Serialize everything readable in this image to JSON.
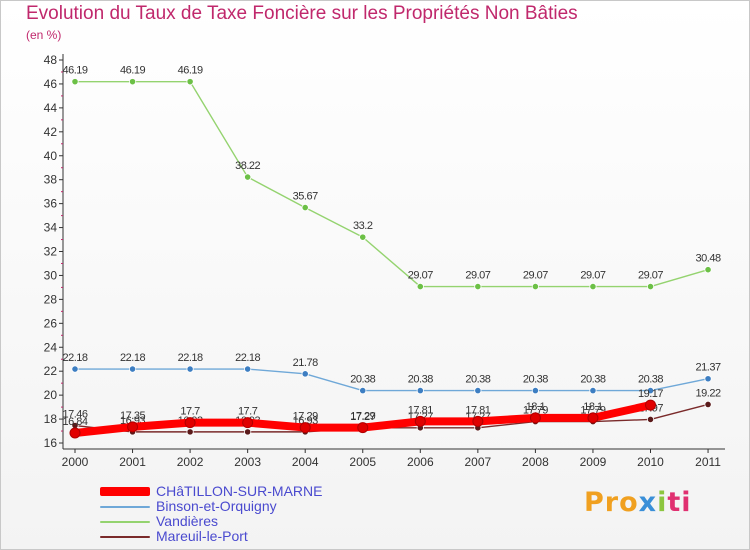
{
  "header": {
    "title": "Evolution du Taux de Taxe Foncière sur les Propriétés Non Bâties",
    "subtitle": "(en %)"
  },
  "chart_data": {
    "type": "line",
    "title": "Evolution du Taux de Taxe Foncière sur les Propriétés Non Bâties",
    "ylabel": "(en %)",
    "xlabel": "",
    "categories": [
      "2000",
      "2001",
      "2002",
      "2003",
      "2004",
      "2005",
      "2006",
      "2007",
      "2008",
      "2009",
      "2010",
      "2011"
    ],
    "ylim": [
      15.5,
      48
    ],
    "yticks": [
      16,
      18,
      20,
      22,
      24,
      26,
      28,
      30,
      32,
      34,
      36,
      38,
      40,
      42,
      44,
      46,
      48
    ],
    "grid": false,
    "legend": "bottom-left",
    "series": [
      {
        "name": "Vandières",
        "color": "#94d36f",
        "point_color": "#6cc046",
        "values": [
          46.19,
          46.19,
          46.19,
          38.22,
          35.67,
          33.2,
          29.07,
          29.07,
          29.07,
          29.07,
          29.07,
          30.48
        ],
        "labels": [
          "46.19",
          "46.19",
          "46.19",
          "38.22",
          "35.67",
          "33.2",
          "29.07",
          "29.07",
          "29.07",
          "29.07",
          "29.07",
          "30.48"
        ]
      },
      {
        "name": "Binson-et-Orquigny",
        "color": "#6fa8d8",
        "point_color": "#3d7ec2",
        "values": [
          22.18,
          22.18,
          22.18,
          22.18,
          21.78,
          20.38,
          20.38,
          20.38,
          20.38,
          20.38,
          20.38,
          21.37
        ],
        "labels": [
          "22.18",
          "22.18",
          "22.18",
          "22.18",
          "21.78",
          "20.38",
          "20.38",
          "20.38",
          "20.38",
          "20.38",
          "20.38",
          "21.37"
        ]
      },
      {
        "name": "Mareuil-le-Port",
        "color": "#7a2a2a",
        "point_color": "#5a1a1a",
        "values": [
          17.46,
          16.93,
          16.93,
          16.93,
          16.93,
          17.27,
          17.27,
          17.27,
          17.79,
          17.79,
          17.97,
          19.22
        ],
        "labels": [
          "17.46",
          "16.93",
          "16.93",
          "16.93",
          "16.93",
          "17.27",
          "17.27",
          "17.27",
          "17.79",
          "17.79",
          "17.97",
          "19.22"
        ]
      },
      {
        "name": "CHâTILLON-SUR-MARNE",
        "color": "#ff0000",
        "point_color": "#e00000",
        "thick": true,
        "values": [
          16.84,
          17.35,
          17.7,
          17.7,
          17.29,
          17.29,
          17.81,
          17.81,
          18.1,
          18.1,
          19.17,
          null
        ],
        "labels": [
          "16.84",
          "17.35",
          "17.7",
          "17.7",
          "17.29",
          "17.29",
          "17.81",
          "17.81",
          "18.1",
          "18.1",
          "19.17",
          ""
        ]
      }
    ]
  },
  "legend": {
    "items": [
      {
        "label": "CHâTILLON-SUR-MARNE",
        "color": "#ff0000"
      },
      {
        "label": "Binson-et-Orquigny",
        "color": "#6fa8d8"
      },
      {
        "label": "Vandières",
        "color": "#94d36f"
      },
      {
        "label": "Mareuil-le-Port",
        "color": "#7a2a2a"
      }
    ]
  },
  "logo": {
    "p1": "Pro",
    "p2": "x",
    "p3": "i",
    "p4": "ti"
  }
}
